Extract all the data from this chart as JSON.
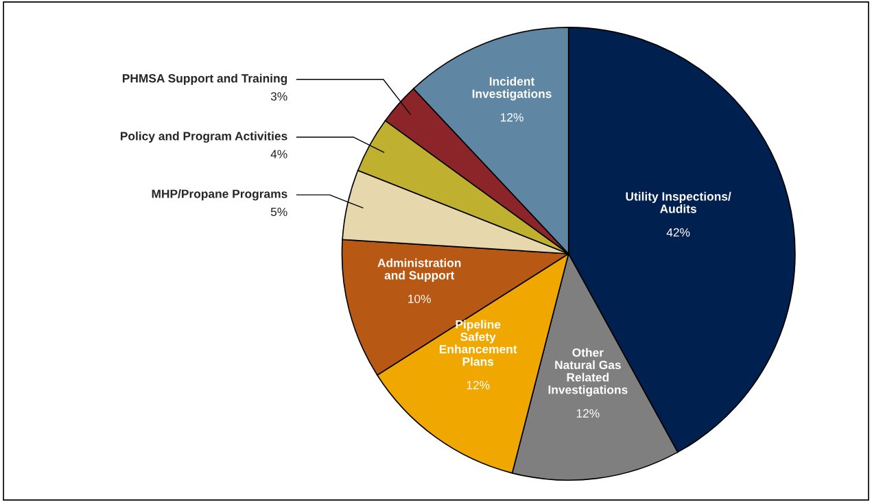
{
  "chart_data": {
    "type": "pie",
    "categories": [
      "Utility Inspections/\nAudits",
      "Other\nNatural Gas\nRelated\nInvestigations",
      "Pipeline\nSafety\nEnhancement\nPlans",
      "Administration\nand Support",
      "MHP/Propane Programs",
      "Policy and Program Activities",
      "PHMSA Support and Training",
      "Incident\nInvestigations"
    ],
    "values": [
      42,
      12,
      12,
      10,
      5,
      4,
      3,
      12
    ],
    "value_labels": [
      "42%",
      "12%",
      "12%",
      "10%",
      "5%",
      "4%",
      "3%",
      "12%"
    ],
    "colors": [
      "#002050",
      "#7f7f7f",
      "#f0a800",
      "#b85815",
      "#e6d8ac",
      "#c0b030",
      "#8b2529",
      "#5f87a3"
    ],
    "legend": false
  }
}
